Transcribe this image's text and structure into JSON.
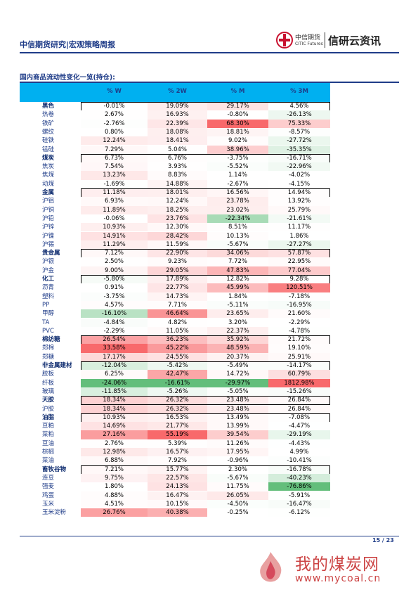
{
  "header": {
    "title": "中信期货研究|宏观策略周报",
    "logo_cn": "中信期货",
    "logo_en": "CITIC Futures",
    "brand": "信研云资讯"
  },
  "section_title": "国内商品流动性变化一览(持仓):",
  "table": {
    "columns": [
      "% W",
      "% 2W",
      "% M",
      "% 3M"
    ],
    "rows": [
      {
        "name": "黑色",
        "group": true,
        "cells": [
          "-0.01%",
          "19.09%",
          "29.17%",
          "4.56%"
        ]
      },
      {
        "name": "热卷",
        "cells": [
          "2.67%",
          "16.93%",
          "-0.80%",
          "-26.13%"
        ]
      },
      {
        "name": "铁矿",
        "cells": [
          "-2.76%",
          "22.39%",
          "68.30%",
          "75.33%"
        ]
      },
      {
        "name": "螺纹",
        "cells": [
          "0.80%",
          "18.08%",
          "18.81%",
          "-8.57%"
        ]
      },
      {
        "name": "硅铁",
        "cells": [
          "12.24%",
          "18.41%",
          "9.02%",
          "-27.72%"
        ]
      },
      {
        "name": "锰硅",
        "cells": [
          "7.29%",
          "5.04%",
          "38.96%",
          "-35.35%"
        ]
      },
      {
        "name": "煤炭",
        "group": true,
        "cells": [
          "6.73%",
          "6.76%",
          "-3.75%",
          "-16.71%"
        ]
      },
      {
        "name": "焦炭",
        "cells": [
          "7.54%",
          "3.93%",
          "-5.52%",
          "-22.96%"
        ]
      },
      {
        "name": "焦煤",
        "cells": [
          "13.23%",
          "8.83%",
          "1.14%",
          "-4.02%"
        ]
      },
      {
        "name": "动煤",
        "cells": [
          "-1.69%",
          "14.88%",
          "-2.67%",
          "-4.15%"
        ]
      },
      {
        "name": "金属",
        "group": true,
        "cells": [
          "11.18%",
          "18.01%",
          "16.56%",
          "14.94%"
        ]
      },
      {
        "name": "沪铝",
        "cells": [
          "6.93%",
          "12.24%",
          "23.78%",
          "13.92%"
        ]
      },
      {
        "name": "沪铜",
        "cells": [
          "11.89%",
          "18.25%",
          "23.02%",
          "25.79%"
        ]
      },
      {
        "name": "沪铅",
        "cells": [
          "-0.06%",
          "23.76%",
          "-22.34%",
          "-21.61%"
        ]
      },
      {
        "name": "沪锌",
        "cells": [
          "10.93%",
          "12.30%",
          "8.51%",
          "11.17%"
        ]
      },
      {
        "name": "沪镍",
        "cells": [
          "14.91%",
          "28.42%",
          "10.13%",
          "1.86%"
        ]
      },
      {
        "name": "沪锡",
        "cells": [
          "11.29%",
          "11.59%",
          "-5.67%",
          "-27.27%"
        ]
      },
      {
        "name": "贵金属",
        "group": true,
        "cells": [
          "7.12%",
          "22.90%",
          "34.06%",
          "57.87%"
        ]
      },
      {
        "name": "沪银",
        "cells": [
          "2.50%",
          "9.23%",
          "7.72%",
          "22.95%"
        ]
      },
      {
        "name": "沪金",
        "cells": [
          "9.00%",
          "29.05%",
          "47.83%",
          "77.04%"
        ]
      },
      {
        "name": "化工",
        "group": true,
        "cells": [
          "-5.80%",
          "17.89%",
          "12.82%",
          "9.28%"
        ]
      },
      {
        "name": "沥青",
        "cells": [
          "0.91%",
          "22.77%",
          "45.99%",
          "120.51%"
        ]
      },
      {
        "name": "塑料",
        "cells": [
          "-3.75%",
          "14.73%",
          "1.84%",
          "-7.18%"
        ]
      },
      {
        "name": "PP",
        "cells": [
          "4.57%",
          "7.71%",
          "-5.11%",
          "-16.95%"
        ]
      },
      {
        "name": "甲醇",
        "cells": [
          "-16.10%",
          "46.64%",
          "23.65%",
          "21.60%"
        ]
      },
      {
        "name": "TA",
        "cells": [
          "-4.84%",
          "4.82%",
          "3.20%",
          "-2.29%"
        ]
      },
      {
        "name": "PVC",
        "cells": [
          "-2.29%",
          "11.05%",
          "22.37%",
          "-4.78%"
        ]
      },
      {
        "name": "棉纺糖",
        "group": true,
        "cells": [
          "26.54%",
          "36.23%",
          "35.92%",
          "21.72%"
        ]
      },
      {
        "name": "郑棉",
        "cells": [
          "33.58%",
          "45.22%",
          "48.59%",
          "19.10%"
        ]
      },
      {
        "name": "郑糖",
        "cells": [
          "17.17%",
          "24.55%",
          "20.37%",
          "25.91%"
        ]
      },
      {
        "name": "非金属建材",
        "group": true,
        "cells": [
          "-12.04%",
          "-5.42%",
          "-5.49%",
          "-14.17%"
        ]
      },
      {
        "name": "胶板",
        "cells": [
          "6.25%",
          "42.47%",
          "14.72%",
          "60.79%"
        ]
      },
      {
        "name": "纤板",
        "cells": [
          "-24.06%",
          "-16.61%",
          "-29.97%",
          "1812.98%"
        ]
      },
      {
        "name": "玻璃",
        "cells": [
          "-11.85%",
          "-5.26%",
          "-5.05%",
          "-15.26%"
        ]
      },
      {
        "name": "天胶",
        "group": true,
        "cells": [
          "18.34%",
          "26.32%",
          "23.48%",
          "26.84%"
        ]
      },
      {
        "name": "沪胶",
        "cells": [
          "18.34%",
          "26.32%",
          "23.48%",
          "26.84%"
        ]
      },
      {
        "name": "油脂",
        "group": true,
        "cells": [
          "10.93%",
          "16.53%",
          "13.49%",
          "-7.08%"
        ]
      },
      {
        "name": "豆粕",
        "cells": [
          "14.69%",
          "21.77%",
          "13.99%",
          "-4.47%"
        ]
      },
      {
        "name": "菜粕",
        "cells": [
          "27.16%",
          "55.19%",
          "39.54%",
          "-29.19%"
        ]
      },
      {
        "name": "豆油",
        "cells": [
          "2.76%",
          "5.39%",
          "11.26%",
          "-4.43%"
        ]
      },
      {
        "name": "棕榈",
        "cells": [
          "12.98%",
          "16.57%",
          "17.95%",
          "4.99%"
        ]
      },
      {
        "name": "菜油",
        "cells": [
          "6.88%",
          "7.92%",
          "-0.96%",
          "-10.41%"
        ]
      },
      {
        "name": "畜牧谷物",
        "group": true,
        "cells": [
          "7.21%",
          "15.77%",
          "2.30%",
          "-16.78%"
        ]
      },
      {
        "name": "连豆",
        "cells": [
          "9.75%",
          "22.57%",
          "-5.67%",
          "-40.23%"
        ]
      },
      {
        "name": "强麦",
        "cells": [
          "1.80%",
          "24.13%",
          "11.75%",
          "-76.86%"
        ]
      },
      {
        "name": "鸡蛋",
        "cells": [
          "4.88%",
          "16.47%",
          "26.05%",
          "-5.91%"
        ]
      },
      {
        "name": "玉米",
        "cells": [
          "4.51%",
          "10.15%",
          "-4.50%",
          "-16.47%"
        ]
      },
      {
        "name": "玉米淀粉",
        "cells": [
          "26.76%",
          "40.38%",
          "-0.25%",
          "-6.12%"
        ]
      }
    ]
  },
  "footer": {
    "page": "15 / 23"
  },
  "watermark": {
    "name": "我的煤炭网",
    "url": "www.mycoal.cn"
  }
}
